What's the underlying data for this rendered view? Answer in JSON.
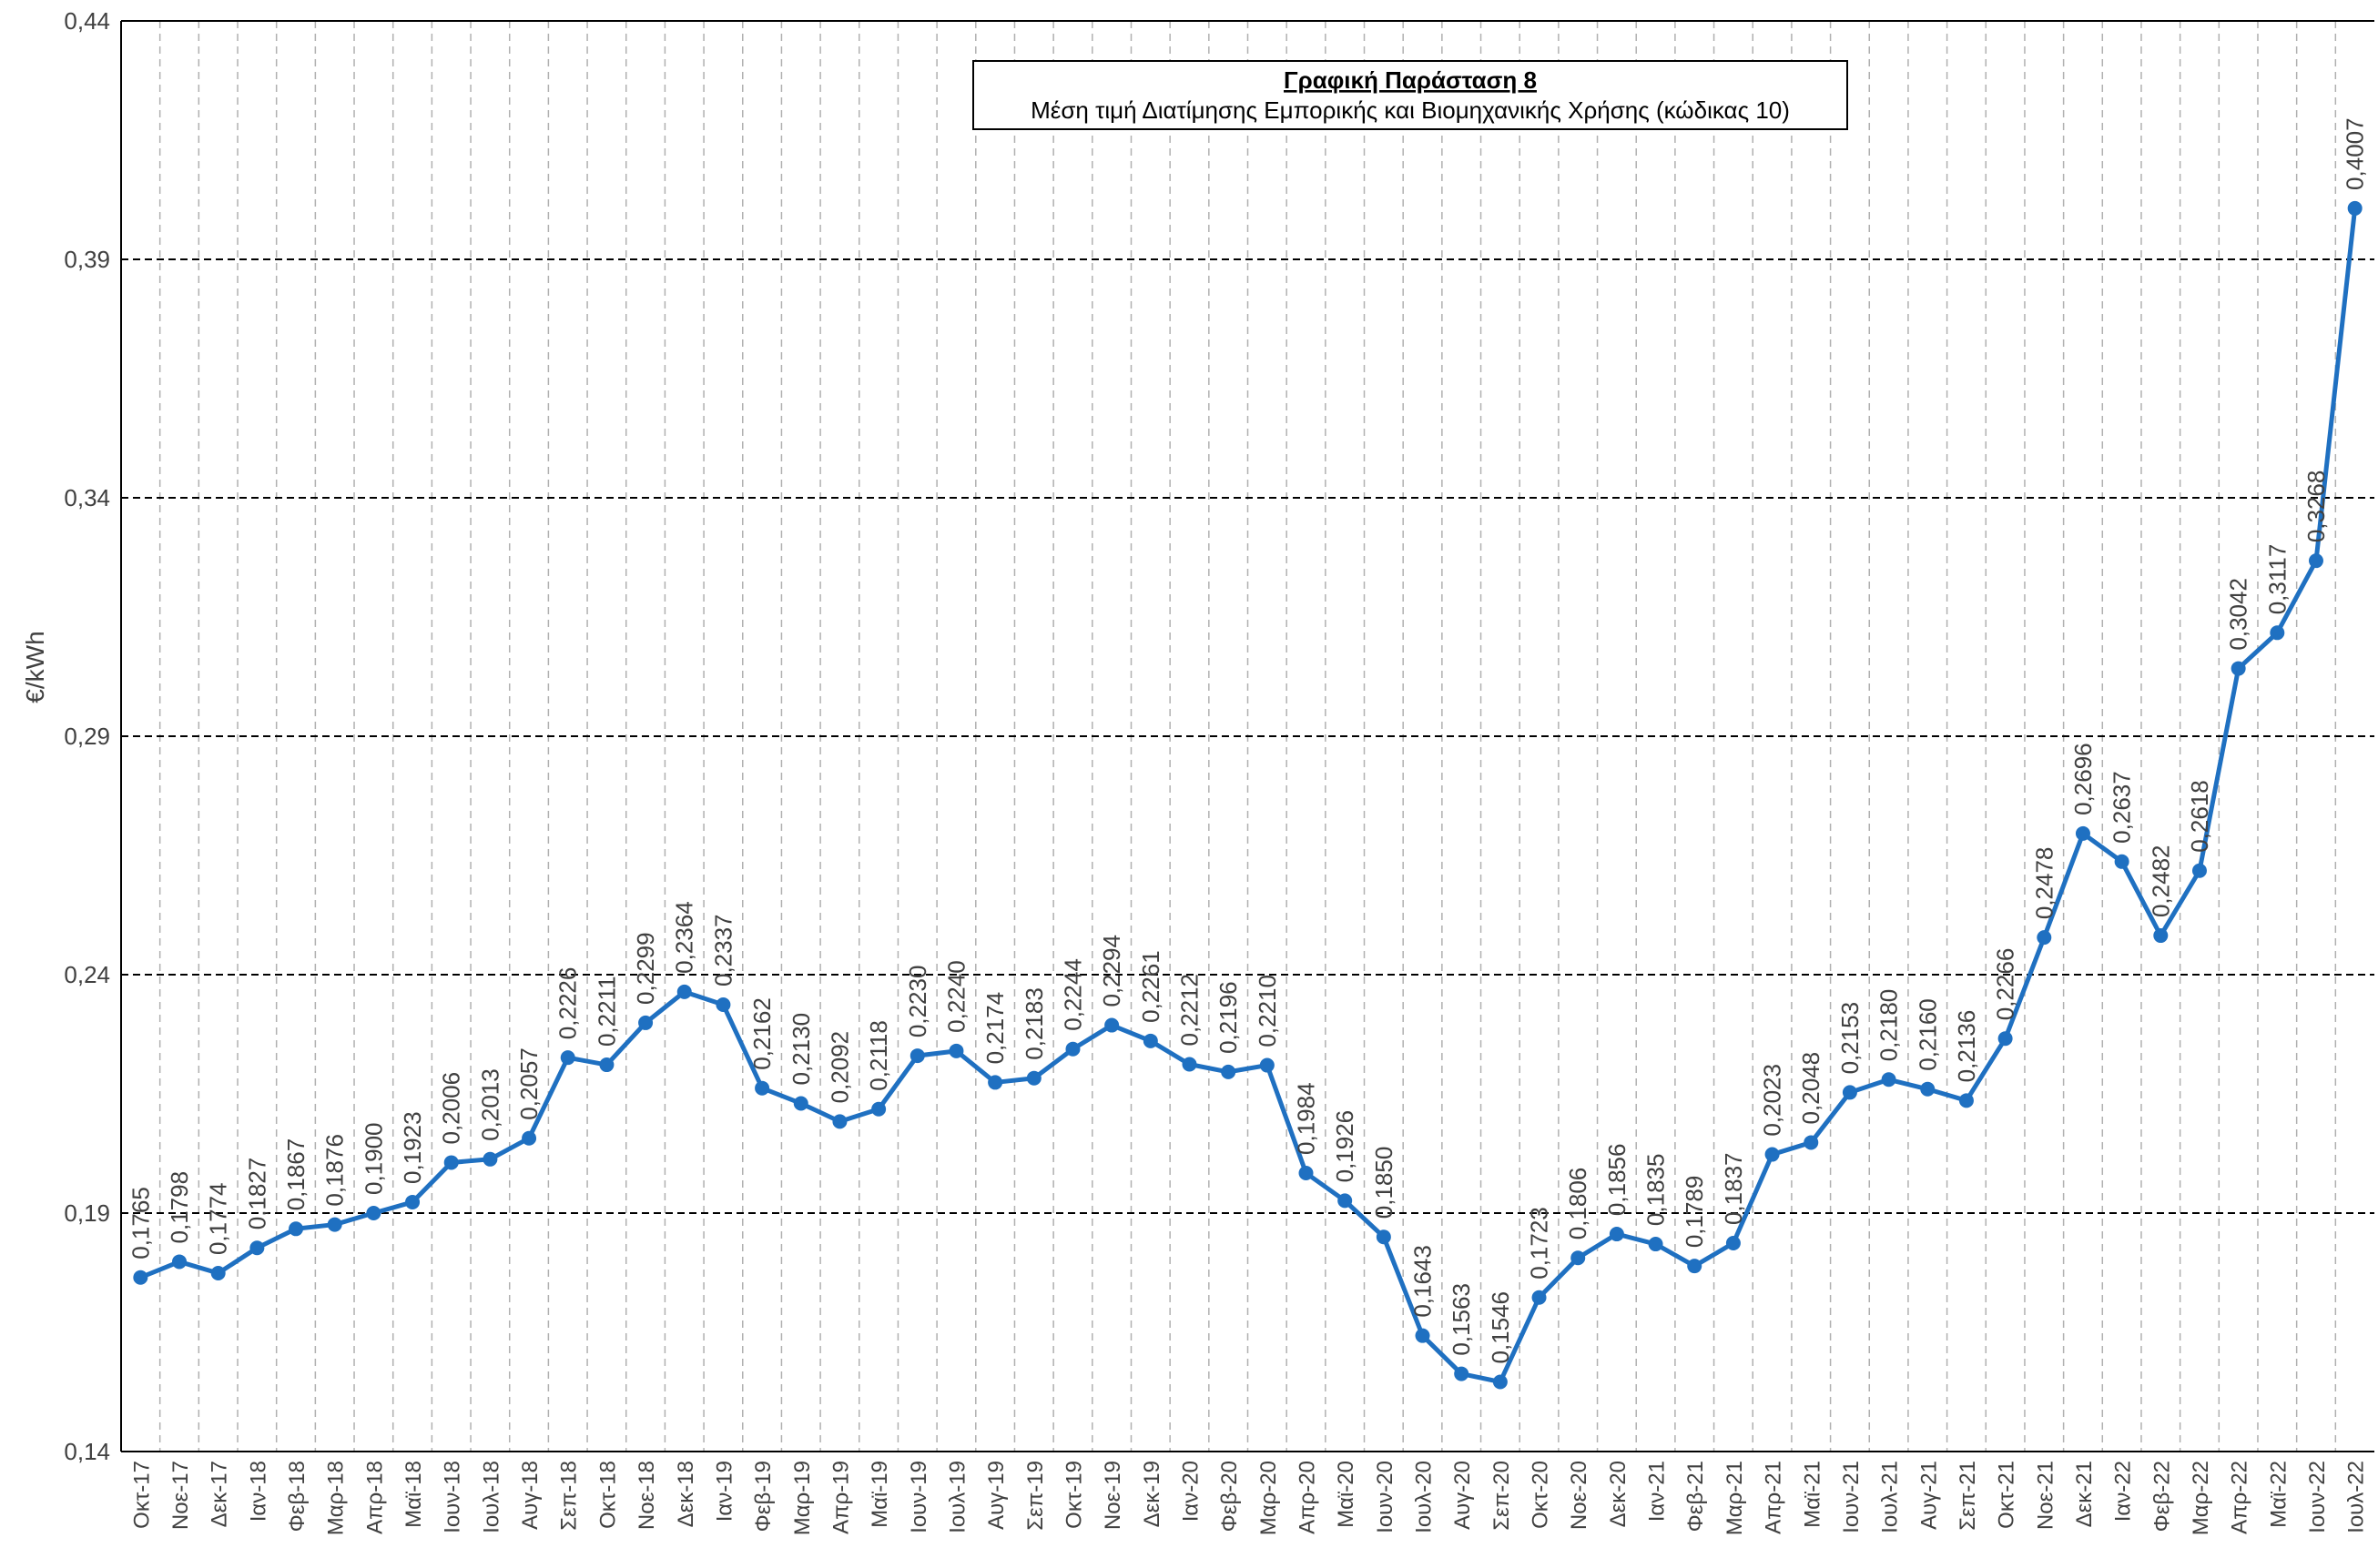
{
  "chart_data": {
    "type": "line",
    "title": "Γραφική Παράσταση 8",
    "subtitle": "Μέση τιμή Διατίμησης Εμπορικής και Βιομηχανικής Χρήσης (κώδικας 10)",
    "y_label": "€/kWh",
    "categories": [
      "Οκτ-17",
      "Νοε-17",
      "Δεκ-17",
      "Ιαν-18",
      "Φεβ-18",
      "Μαρ-18",
      "Απρ-18",
      "Μαϊ-18",
      "Ιουν-18",
      "Ιουλ-18",
      "Αυγ-18",
      "Σεπ-18",
      "Οκτ-18",
      "Νοε-18",
      "Δεκ-18",
      "Ιαν-19",
      "Φεβ-19",
      "Μαρ-19",
      "Απρ-19",
      "Μαϊ-19",
      "Ιουν-19",
      "Ιουλ-19",
      "Αυγ-19",
      "Σεπ-19",
      "Οκτ-19",
      "Νοε-19",
      "Δεκ-19",
      "Ιαν-20",
      "Φεβ-20",
      "Μαρ-20",
      "Απρ-20",
      "Μαϊ-20",
      "Ιουν-20",
      "Ιουλ-20",
      "Αυγ-20",
      "Σεπ-20",
      "Οκτ-20",
      "Νοε-20",
      "Δεκ-20",
      "Ιαν-21",
      "Φεβ-21",
      "Μαρ-21",
      "Απρ-21",
      "Μαϊ-21",
      "Ιουν-21",
      "Ιουλ-21",
      "Αυγ-21",
      "Σεπ-21",
      "Οκτ-21",
      "Νοε-21",
      "Δεκ-21",
      "Ιαν-22",
      "Φεβ-22",
      "Μαρ-22",
      "Απρ-22",
      "Μαϊ-22",
      "Ιουν-22",
      "Ιουλ-22"
    ],
    "series": [
      {
        "color": "#1f70c1",
        "values": [
          0.1765,
          0.1798,
          0.1774,
          0.1827,
          0.1867,
          0.1876,
          0.19,
          0.1923,
          0.2006,
          0.2013,
          0.2057,
          0.2226,
          0.2211,
          0.2299,
          0.2364,
          0.2337,
          0.2162,
          0.213,
          0.2092,
          0.2118,
          0.223,
          0.224,
          0.2174,
          0.2183,
          0.2244,
          0.2294,
          0.2261,
          0.2212,
          0.2196,
          0.221,
          0.1984,
          0.1926,
          0.185,
          0.1643,
          0.1563,
          0.1546,
          0.1723,
          0.1806,
          0.1856,
          0.1835,
          0.1789,
          0.1837,
          0.2023,
          0.2048,
          0.2153,
          0.218,
          0.216,
          0.2136,
          0.2266,
          0.2478,
          0.2696,
          0.2637,
          0.2482,
          0.2618,
          0.3042,
          0.3117,
          0.3268,
          0.4007
        ],
        "value_labels": [
          "0,1765",
          "0,1798",
          "0,1774",
          "0,1827",
          "0,1867",
          "0,1876",
          "0,1900",
          "0,1923",
          "0,2006",
          "0,2013",
          "0,2057",
          "0,2226",
          "0,2211",
          "0,2299",
          "0,2364",
          "0,2337",
          "0,2162",
          "0,2130",
          "0,2092",
          "0,2118",
          "0,2230",
          "0,2240",
          "0,2174",
          "0,2183",
          "0,2244",
          "0,2294",
          "0,2261",
          "0,2212",
          "0,2196",
          "0,2210",
          "0,1984",
          "0,1926",
          "0,1850",
          "0,1643",
          "0,1563",
          "0,1546",
          "0,1723",
          "0,1806",
          "0,1856",
          "0,1835",
          "0,1789",
          "0,1837",
          "0,2023",
          "0,2048",
          "0,2153",
          "0,2180",
          "0,2160",
          "0,2136",
          "0,2266",
          "0,2478",
          "0,2696",
          "0,2637",
          "0,2482",
          "0,2618",
          "0,3042",
          "0,3117",
          "0,3268",
          "0,4007"
        ]
      }
    ],
    "ylim": [
      0.14,
      0.44
    ],
    "yticks": [
      {
        "value": 0.14,
        "label": "0,14"
      },
      {
        "value": 0.19,
        "label": "0,19"
      },
      {
        "value": 0.24,
        "label": "0,24"
      },
      {
        "value": 0.29,
        "label": "0,29"
      },
      {
        "value": 0.34,
        "label": "0,34"
      },
      {
        "value": 0.39,
        "label": "0,39"
      },
      {
        "value": 0.44,
        "label": "0,44"
      }
    ],
    "grid": true
  }
}
